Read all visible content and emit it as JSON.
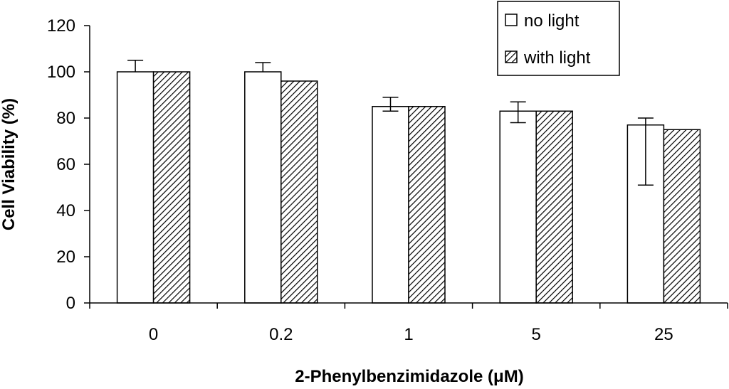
{
  "chart_data": {
    "type": "bar",
    "title": "",
    "xlabel": "2-Phenylbenzimidazole (μM)",
    "ylabel": "Cell Viability (%)",
    "categories": [
      "0",
      "0.2",
      "1",
      "5",
      "25"
    ],
    "ylim": [
      0,
      120
    ],
    "yticks": [
      "0",
      "20",
      "40",
      "60",
      "80",
      "100",
      "120"
    ],
    "grid": false,
    "legend_position": "top-right",
    "series": [
      {
        "name": "no light",
        "fill": "white",
        "values": [
          100,
          100,
          85,
          83,
          77
        ],
        "error_plus": [
          5,
          4,
          4,
          4,
          3
        ],
        "error_minus": [
          0,
          0,
          2,
          5,
          26
        ]
      },
      {
        "name": "with light",
        "fill": "hatched",
        "values": [
          100,
          96,
          85,
          83,
          75
        ]
      }
    ],
    "colors": {
      "axis": "#000000",
      "bar_outline": "#000000",
      "open_fill": "#ffffff",
      "hatch": "#000000"
    }
  }
}
